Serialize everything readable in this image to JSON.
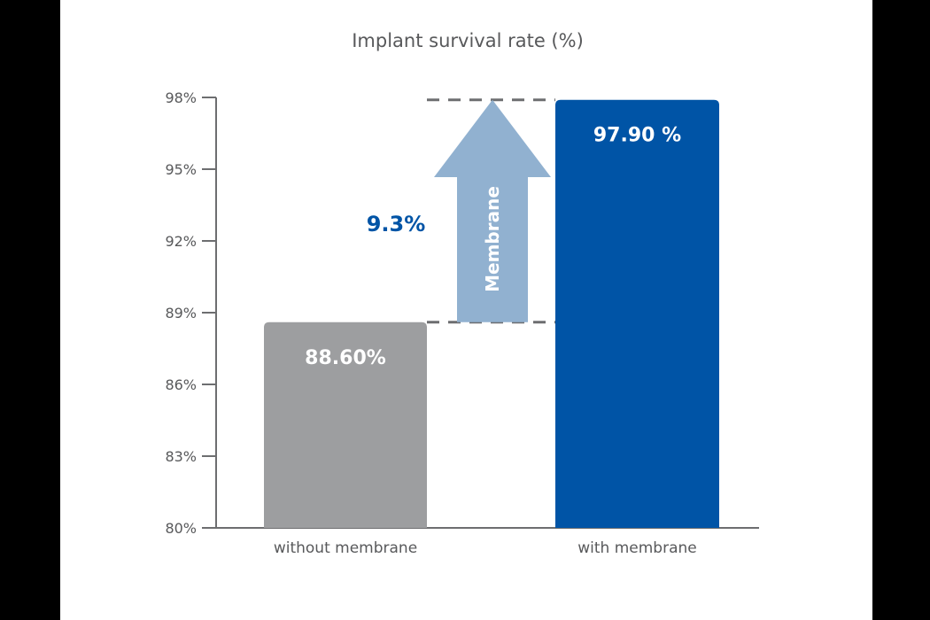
{
  "chart_data": {
    "type": "bar",
    "title": "Implant survival rate (%)",
    "xlabel": "",
    "ylabel": "",
    "ylim": [
      80,
      98
    ],
    "yticks": [
      "80%",
      "83%",
      "86%",
      "89%",
      "92%",
      "95%",
      "98%"
    ],
    "ytick_values": [
      80,
      83,
      86,
      89,
      92,
      95,
      98
    ],
    "categories": [
      "without membrane",
      "with membrane"
    ],
    "values": [
      88.6,
      97.9
    ],
    "value_labels": [
      "88.60%",
      "97.90 %"
    ],
    "grid": false,
    "annotation": {
      "arrow_label": "Membrane",
      "difference_label": "9.3%",
      "difference_value": 9.3
    },
    "colors": {
      "without membrane": "#9d9ea0",
      "with membrane": "#0054a6",
      "arrow": "#91b1d0",
      "difference_text": "#0054a6",
      "axis": "#6d6e70",
      "dashes": "#6d6e70"
    }
  }
}
